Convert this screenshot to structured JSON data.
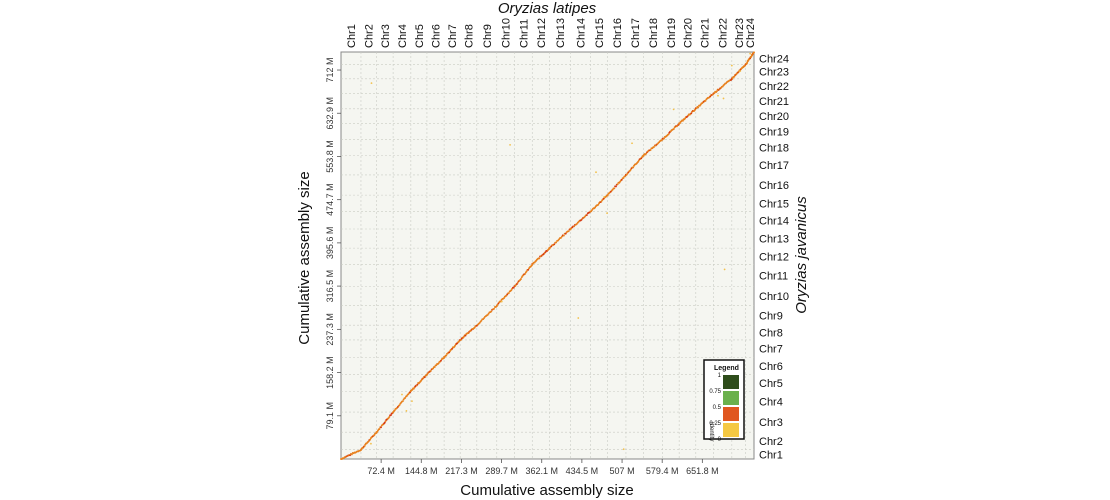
{
  "chart_data": {
    "type": "scatter",
    "title": "",
    "top_title": "Oryzias latipes",
    "right_title": "Oryzias javanicus",
    "xlabel": "Cumulative assembly size",
    "ylabel": "Cumulative assembly size",
    "xlim": [
      0,
      745
    ],
    "ylim": [
      0,
      745
    ],
    "x_ticks": [
      "72.4 M",
      "144.8 M",
      "217.3 M",
      "289.7 M",
      "362.1 M",
      "434.5 M",
      "507 M",
      "579.4 M",
      "651.8 M"
    ],
    "x_tick_values": [
      72.4,
      144.8,
      217.3,
      289.7,
      362.1,
      434.5,
      507.0,
      579.4,
      651.8
    ],
    "y_ticks": [
      "79.1 M",
      "158.2 M",
      "237.3 M",
      "316.5 M",
      "395.6 M",
      "474.7 M",
      "553.8 M",
      "632.9 M",
      "712 M"
    ],
    "y_tick_values": [
      79.1,
      158.2,
      237.3,
      316.5,
      395.6,
      474.7,
      553.8,
      632.9,
      712.0
    ],
    "x_chromosomes": [
      "Chr1",
      "Chr2",
      "Chr3",
      "Chr4",
      "Chr5",
      "Chr6",
      "Chr7",
      "Chr8",
      "Chr9",
      "Chr10",
      "Chr11",
      "Chr12",
      "Chr13",
      "Chr14",
      "Chr15",
      "Chr16",
      "Chr17",
      "Chr18",
      "Chr19",
      "Chr20",
      "Chr21",
      "Chr22",
      "Chr23",
      "Chr24"
    ],
    "x_chromosome_bounds": [
      0,
      36,
      64,
      94,
      126,
      155,
      186,
      215,
      245,
      281,
      313,
      345,
      376,
      414,
      450,
      481,
      514,
      546,
      580,
      610,
      640,
      672,
      705,
      730,
      745
    ],
    "y_chromosomes": [
      "Chr1",
      "Chr2",
      "Chr3",
      "Chr4",
      "Chr5",
      "Chr6",
      "Chr7",
      "Chr8",
      "Chr9",
      "Chr10",
      "Chr11",
      "Chr12",
      "Chr13",
      "Chr14",
      "Chr15",
      "Chr16",
      "Chr17",
      "Chr18",
      "Chr19",
      "Chr20",
      "Chr21",
      "Chr22",
      "Chr23",
      "Chr24"
    ],
    "y_chromosome_bounds": [
      0,
      17,
      49,
      86,
      124,
      155,
      186,
      218,
      245,
      281,
      316,
      356,
      386,
      421,
      453,
      483,
      520,
      556,
      585,
      614,
      641,
      669,
      696,
      722,
      745
    ],
    "diagonal_points": [
      [
        0,
        0
      ],
      [
        36,
        17
      ],
      [
        64,
        49
      ],
      [
        94,
        86
      ],
      [
        126,
        124
      ],
      [
        155,
        155
      ],
      [
        186,
        186
      ],
      [
        215,
        218
      ],
      [
        245,
        245
      ],
      [
        281,
        281
      ],
      [
        313,
        316
      ],
      [
        345,
        356
      ],
      [
        376,
        386
      ],
      [
        414,
        421
      ],
      [
        450,
        453
      ],
      [
        481,
        483
      ],
      [
        514,
        520
      ],
      [
        546,
        556
      ],
      [
        580,
        585
      ],
      [
        610,
        614
      ],
      [
        640,
        641
      ],
      [
        672,
        669
      ],
      [
        705,
        696
      ],
      [
        730,
        722
      ],
      [
        745,
        745
      ]
    ],
    "off_diagonal_points": [
      [
        54,
        28
      ],
      [
        110,
        118
      ],
      [
        118,
        88
      ],
      [
        128,
        106
      ],
      [
        290,
        288
      ],
      [
        305,
        575
      ],
      [
        428,
        258
      ],
      [
        460,
        525
      ],
      [
        475,
        480
      ],
      [
        510,
        18
      ],
      [
        525,
        578
      ],
      [
        600,
        640
      ],
      [
        680,
        665
      ],
      [
        690,
        660
      ],
      [
        692,
        347
      ],
      [
        705,
        720
      ],
      [
        720,
        710
      ],
      [
        738,
        742
      ],
      [
        55,
        688
      ],
      [
        480,
        450
      ]
    ],
    "legend": {
      "title": "Legend",
      "subtitle": "Identity",
      "ticks": [
        "1",
        "0.75",
        "0.5",
        "0.25",
        "0"
      ],
      "colors": [
        "#2e4d1b",
        "#6ab04c",
        "#e0571f",
        "#f5c842"
      ]
    },
    "grid": true,
    "dot_colors": {
      "main": "#e8811e",
      "highlight": "#d63a12",
      "faint": "#f2c14e"
    }
  }
}
